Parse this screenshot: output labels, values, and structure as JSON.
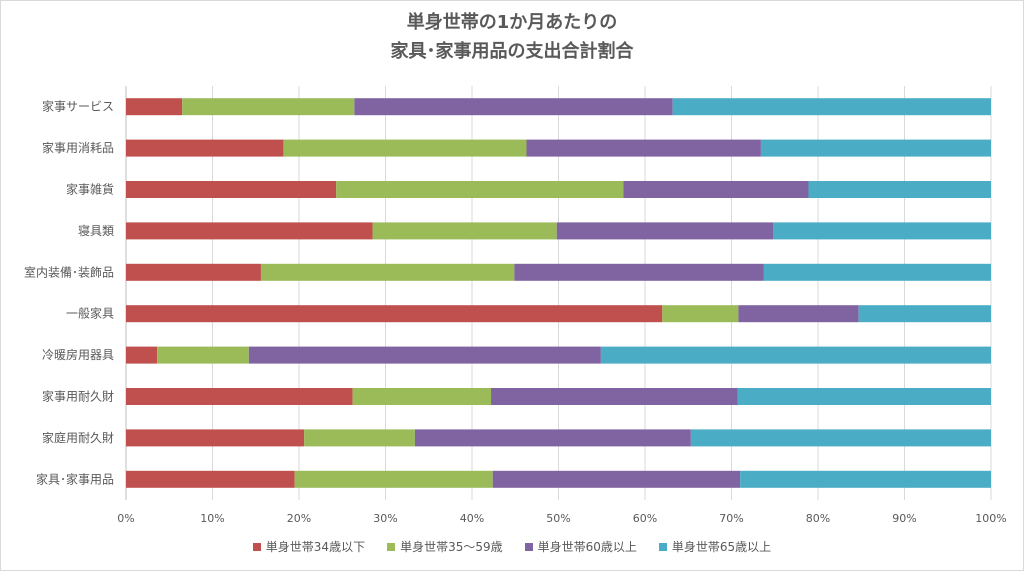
{
  "chart_data": {
    "type": "bar",
    "orientation": "horizontal",
    "stacked": "percent",
    "title_lines": [
      "単身世帯の1か月あたりの",
      "家具･家事用品の支出合計割合"
    ],
    "categories": [
      "家事サービス",
      "家事用消耗品",
      "家事雑貨",
      "寝具類",
      "室内装備･装飾品",
      "一般家具",
      "冷暖房用器具",
      "家事用耐久財",
      "家庭用耐久財",
      "家具･家事用品"
    ],
    "series": [
      {
        "name": "単身世帯34歳以下",
        "color": "#c0504d",
        "values": [
          6.5,
          18.2,
          24.3,
          28.5,
          15.6,
          62.0,
          3.6,
          26.2,
          20.6,
          19.5
        ]
      },
      {
        "name": "単身世帯35～59歳",
        "color": "#9bbb59",
        "values": [
          19.9,
          28.1,
          33.2,
          21.3,
          29.3,
          8.8,
          10.6,
          16.0,
          12.8,
          22.9
        ]
      },
      {
        "name": "単身世帯60歳以上",
        "color": "#8064a2",
        "values": [
          36.8,
          27.1,
          21.4,
          25.0,
          28.8,
          13.9,
          40.7,
          28.5,
          31.9,
          28.6
        ]
      },
      {
        "name": "単身世帯65歳以上",
        "color": "#4bacc6",
        "values": [
          36.8,
          26.6,
          21.1,
          25.2,
          26.3,
          15.3,
          45.1,
          29.3,
          34.7,
          29.0
        ]
      }
    ],
    "xlim": [
      0,
      100
    ],
    "x_ticks": [
      "0%",
      "10%",
      "20%",
      "30%",
      "40%",
      "50%",
      "60%",
      "70%",
      "80%",
      "90%",
      "100%"
    ],
    "grid": true,
    "legend_position": "bottom"
  }
}
